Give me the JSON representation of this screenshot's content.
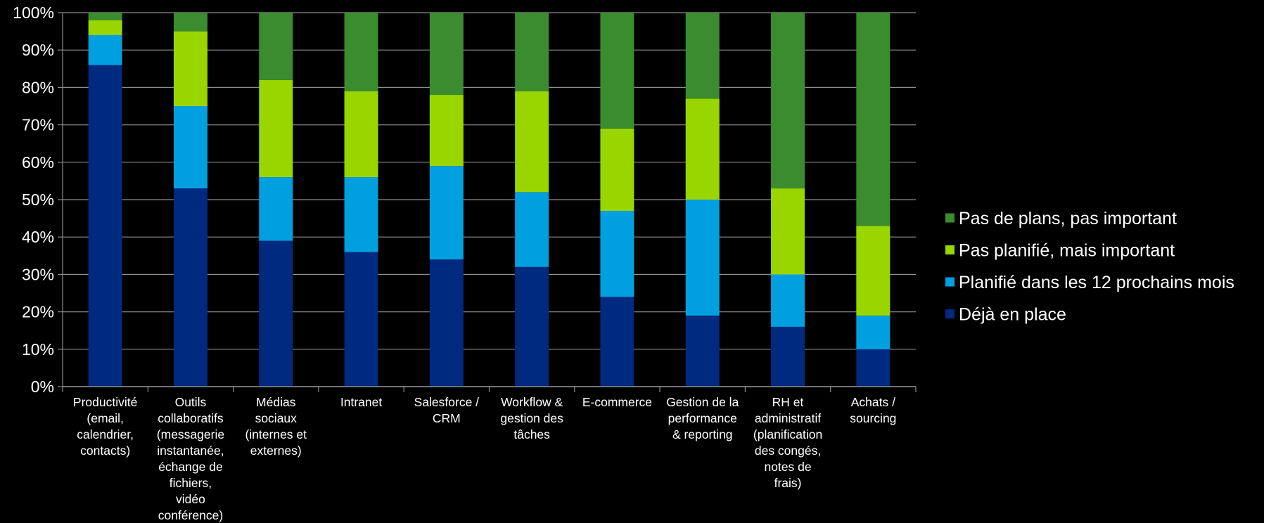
{
  "chart_data": {
    "type": "bar",
    "stacked": true,
    "percent_stacked": true,
    "title": "",
    "xlabel": "",
    "ylabel": "",
    "ylim": [
      0,
      100
    ],
    "grid": true,
    "legend_position": "right",
    "y_ticks": [
      "0%",
      "10%",
      "20%",
      "30%",
      "40%",
      "50%",
      "60%",
      "70%",
      "80%",
      "90%",
      "100%"
    ],
    "categories": [
      "Productivité (email, calendrier, contacts)",
      "Outils collaboratifs (messagerie instantanée, échange de fichiers, vidéo conférence)",
      "Médias sociaux (internes et externes)",
      "Intranet",
      "Salesforce / CRM",
      "Workflow & gestion des tâches",
      "E-commerce",
      "Gestion de la performance & reporting",
      "RH et administratif (planification des congés, notes de frais)",
      "Achats / sourcing"
    ],
    "category_lines": [
      [
        "Productivité",
        "(email,",
        "calendrier,",
        "contacts)"
      ],
      [
        "Outils",
        "collaboratifs",
        "(messagerie",
        "instantanée,",
        "échange de",
        "fichiers,",
        "vidéo",
        "conférence)"
      ],
      [
        "Médias",
        "sociaux",
        "(internes et",
        "externes)"
      ],
      [
        "Intranet"
      ],
      [
        "Salesforce /",
        "CRM"
      ],
      [
        "Workflow &",
        "gestion des",
        "tâches"
      ],
      [
        "E-commerce"
      ],
      [
        "Gestion de la",
        "performance",
        "& reporting"
      ],
      [
        "RH et",
        "administratif",
        "(planification",
        "des congés,",
        "notes de",
        "frais)"
      ],
      [
        "Achats /",
        "sourcing"
      ]
    ],
    "series": [
      {
        "name": "Déjà en place",
        "color": "#002a80",
        "values": [
          86,
          53,
          39,
          36,
          34,
          32,
          24,
          19,
          16,
          10
        ]
      },
      {
        "name": "Planifié dans les 12 prochains mois",
        "color": "#00a0e0",
        "values": [
          8,
          22,
          17,
          20,
          25,
          20,
          23,
          31,
          14,
          9
        ]
      },
      {
        "name": "Pas planifié, mais important",
        "color": "#99d600",
        "values": [
          4,
          20,
          26,
          23,
          19,
          27,
          22,
          27,
          23,
          24
        ]
      },
      {
        "name": "Pas de plans, pas important",
        "color": "#3a8c2e",
        "values": [
          2,
          5,
          18,
          21,
          22,
          21,
          31,
          23,
          47,
          57
        ]
      }
    ],
    "colors": {
      "background": "#000000",
      "gridline": "#8c8c8c",
      "text": "#ffffff"
    }
  }
}
